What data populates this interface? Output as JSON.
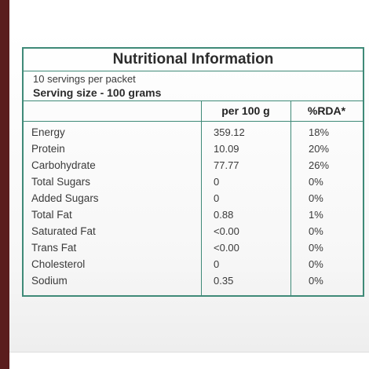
{
  "label": {
    "title": "Nutritional Information",
    "servings_per_packet": "10 servings per packet",
    "serving_size": "Serving size - 100 grams",
    "columns": {
      "per_100g": "per 100 g",
      "rda": "%RDA*"
    },
    "rows": [
      {
        "name": "Energy",
        "per_100g": "359.12",
        "rda": "18%"
      },
      {
        "name": "Protein",
        "per_100g": "10.09",
        "rda": "20%"
      },
      {
        "name": "Carbohydrate",
        "per_100g": "77.77",
        "rda": "26%"
      },
      {
        "name": "Total Sugars",
        "per_100g": "0",
        "rda": "0%"
      },
      {
        "name": "Added Sugars",
        "per_100g": "0",
        "rda": "0%"
      },
      {
        "name": "Total Fat",
        "per_100g": "0.88",
        "rda": "1%"
      },
      {
        "name": "Saturated Fat",
        "per_100g": "<0.00",
        "rda": "0%"
      },
      {
        "name": "Trans Fat",
        "per_100g": "<0.00",
        "rda": "0%"
      },
      {
        "name": "Cholesterol",
        "per_100g": "0",
        "rda": "0%"
      },
      {
        "name": "Sodium",
        "per_100g": "0.35",
        "rda": "0%"
      }
    ]
  },
  "colors": {
    "border_green": "#3f8a78",
    "side_strip": "#5a1d1d"
  }
}
